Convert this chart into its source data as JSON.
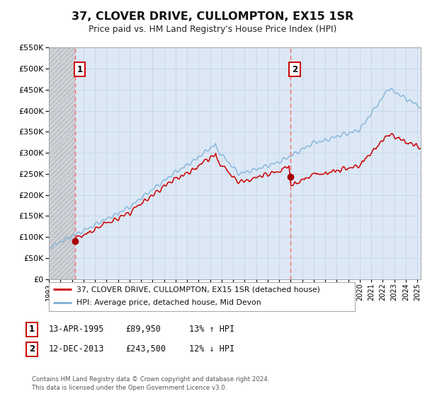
{
  "title": "37, CLOVER DRIVE, CULLOMPTON, EX15 1SR",
  "subtitle": "Price paid vs. HM Land Registry's House Price Index (HPI)",
  "ylim": [
    0,
    550000
  ],
  "yticks": [
    0,
    50000,
    100000,
    150000,
    200000,
    250000,
    300000,
    350000,
    400000,
    450000,
    500000,
    550000
  ],
  "sale1_date": 1995.28,
  "sale1_price": 89950,
  "sale2_date": 2013.95,
  "sale2_price": 243500,
  "hpi_line_color": "#7aaed6",
  "price_line_color": "#cc0000",
  "sale_dot_color": "#aa0000",
  "vline_color": "#ff6666",
  "grid_color": "#c8d8e8",
  "background_color": "#ffffff",
  "plot_bg_color": "#dce8f5",
  "legend_entry1": "37, CLOVER DRIVE, CULLOMPTON, EX15 1SR (detached house)",
  "legend_entry2": "HPI: Average price, detached house, Mid Devon",
  "table_row1": [
    "1",
    "13-APR-1995",
    "£89,950",
    "13% ↑ HPI"
  ],
  "table_row2": [
    "2",
    "12-DEC-2013",
    "£243,500",
    "12% ↓ HPI"
  ],
  "footnote": "Contains HM Land Registry data © Crown copyright and database right 2024.\nThis data is licensed under the Open Government Licence v3.0.",
  "xlim_start": 1993.0,
  "xlim_end": 2025.3,
  "xticks": [
    1993,
    1994,
    1995,
    1996,
    1997,
    1998,
    1999,
    2000,
    2001,
    2002,
    2003,
    2004,
    2005,
    2006,
    2007,
    2008,
    2009,
    2010,
    2011,
    2012,
    2013,
    2014,
    2015,
    2016,
    2017,
    2018,
    2019,
    2020,
    2021,
    2022,
    2023,
    2024,
    2025
  ]
}
